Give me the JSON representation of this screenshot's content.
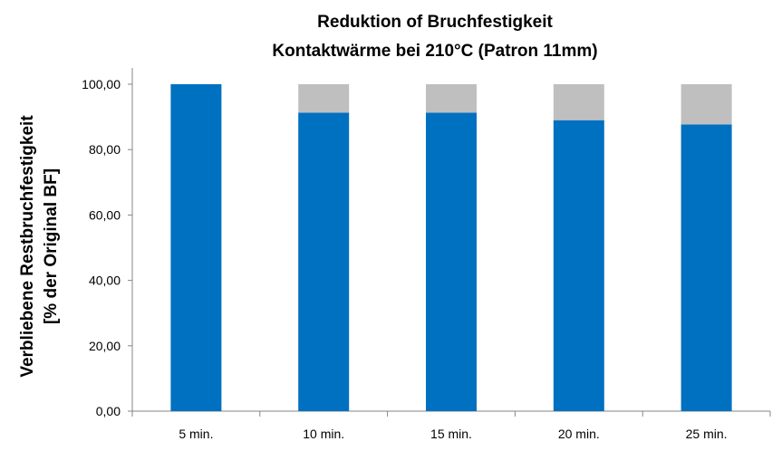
{
  "chart_data": {
    "type": "bar",
    "stacked": true,
    "title": [
      "Reduktion of Bruchfestigkeit",
      "Kontaktwärme bei 210°C (Patron 11mm)"
    ],
    "xlabel": "",
    "ylabel": [
      "Verbliebene Restbruchfestigkeit",
      "[% der Original BF]"
    ],
    "categories": [
      "5 min.",
      "10 min.",
      "15 min.",
      "20 min.",
      "25 min."
    ],
    "series": [
      {
        "values": [
          100.0,
          91.3,
          91.3,
          89.0,
          87.7
        ],
        "color": "#0070c0"
      },
      {
        "values": [
          0.0,
          8.7,
          8.7,
          11.0,
          12.3
        ],
        "color": "#bfbfbf"
      }
    ],
    "ylim": [
      0,
      100
    ],
    "yticks": [
      "0,00",
      "20,00",
      "40,00",
      "60,00",
      "80,00",
      "100,00"
    ],
    "grid": false,
    "legend": "none"
  }
}
